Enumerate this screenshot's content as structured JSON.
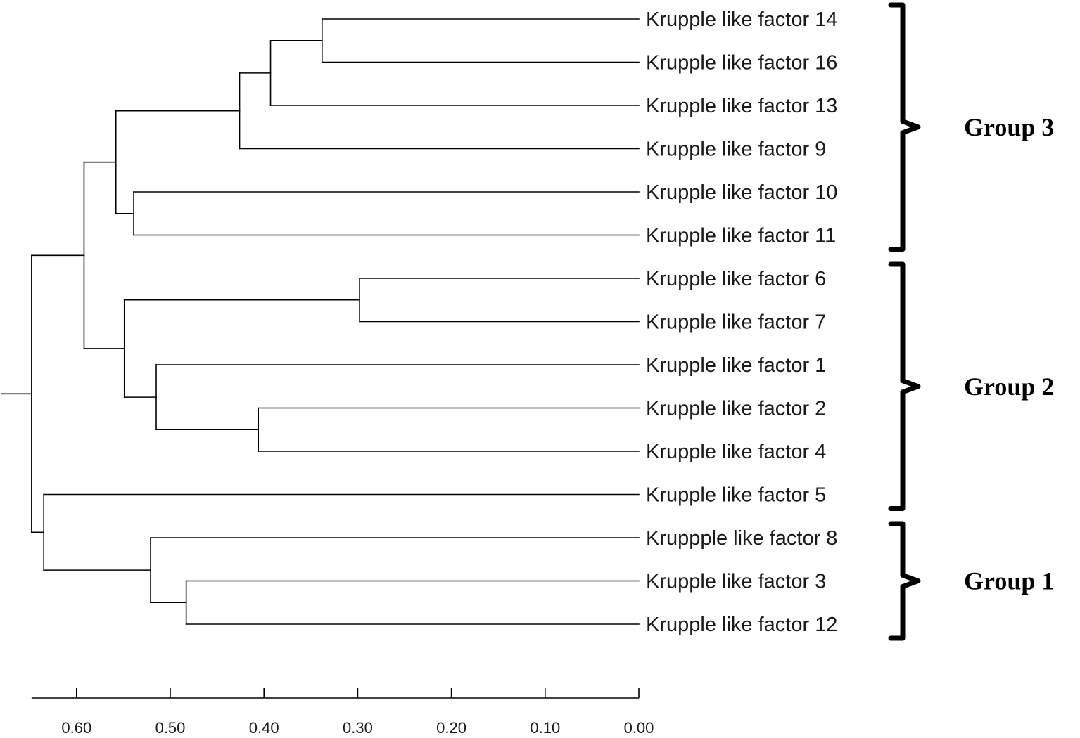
{
  "chart_data": {
    "type": "dendrogram",
    "leaves": [
      {
        "id": "klf14",
        "label": "Krupple like factor 14"
      },
      {
        "id": "klf16",
        "label": "Krupple like factor 16"
      },
      {
        "id": "klf13",
        "label": "Krupple like factor 13"
      },
      {
        "id": "klf9",
        "label": "Krupple like factor 9"
      },
      {
        "id": "klf10",
        "label": "Krupple like factor 10"
      },
      {
        "id": "klf11",
        "label": "Krupple like factor 11"
      },
      {
        "id": "klf6",
        "label": "Krupple like factor 6"
      },
      {
        "id": "klf7",
        "label": "Krupple like factor 7"
      },
      {
        "id": "klf1",
        "label": "Krupple like factor 1"
      },
      {
        "id": "klf2",
        "label": "Krupple like factor 2"
      },
      {
        "id": "klf4",
        "label": "Krupple like factor 4"
      },
      {
        "id": "klf5",
        "label": "Krupple like factor 5"
      },
      {
        "id": "klf8",
        "label": "Kruppple like factor 8"
      },
      {
        "id": "klf3",
        "label": "Krupple like factor 3"
      },
      {
        "id": "klf12",
        "label": "Krupple like factor 12"
      }
    ],
    "nodes": [
      {
        "id": "n14_16",
        "height": 0.338,
        "children": [
          "klf14",
          "klf16"
        ]
      },
      {
        "id": "n14_13",
        "height": 0.393,
        "children": [
          "n14_16",
          "klf13"
        ]
      },
      {
        "id": "n14_9",
        "height": 0.426,
        "children": [
          "n14_13",
          "klf9"
        ]
      },
      {
        "id": "n10_11",
        "height": 0.539,
        "children": [
          "klf10",
          "klf11"
        ]
      },
      {
        "id": "nGroup3",
        "height": 0.558,
        "children": [
          "n14_9",
          "n10_11"
        ]
      },
      {
        "id": "n6_7",
        "height": 0.298,
        "children": [
          "klf6",
          "klf7"
        ]
      },
      {
        "id": "n2_4",
        "height": 0.406,
        "children": [
          "klf2",
          "klf4"
        ]
      },
      {
        "id": "n1_2_4",
        "height": 0.515,
        "children": [
          "klf1",
          "n2_4"
        ]
      },
      {
        "id": "nGroup2",
        "height": 0.549,
        "children": [
          "n6_7",
          "n1_2_4"
        ]
      },
      {
        "id": "nUpper",
        "height": 0.592,
        "children": [
          "nGroup3",
          "nGroup2"
        ]
      },
      {
        "id": "n3_12",
        "height": 0.483,
        "children": [
          "klf3",
          "klf12"
        ]
      },
      {
        "id": "n8_3_12",
        "height": 0.521,
        "children": [
          "klf8",
          "n3_12"
        ]
      },
      {
        "id": "nLower",
        "height": 0.635,
        "children": [
          "klf5",
          "n8_3_12"
        ]
      },
      {
        "id": "root",
        "height": 0.648,
        "children": [
          "nUpper",
          "nLower"
        ]
      }
    ],
    "root_stub_height": 0.68,
    "axis": {
      "ticks": [
        0.6,
        0.5,
        0.4,
        0.3,
        0.2,
        0.1,
        0.0
      ],
      "tick_labels": [
        "0.60",
        "0.50",
        "0.40",
        "0.30",
        "0.20",
        "0.10",
        "0.00"
      ],
      "range": [
        0.648,
        0.0
      ],
      "direction": "reversed"
    },
    "groups": [
      {
        "label": "Group 3",
        "from": "klf14",
        "to": "klf11"
      },
      {
        "label": "Group 2",
        "from": "klf6",
        "to": "klf5"
      },
      {
        "label": "Group 1",
        "from": "klf8",
        "to": "klf12"
      }
    ],
    "title": "",
    "xlabel": "",
    "ylabel": ""
  }
}
